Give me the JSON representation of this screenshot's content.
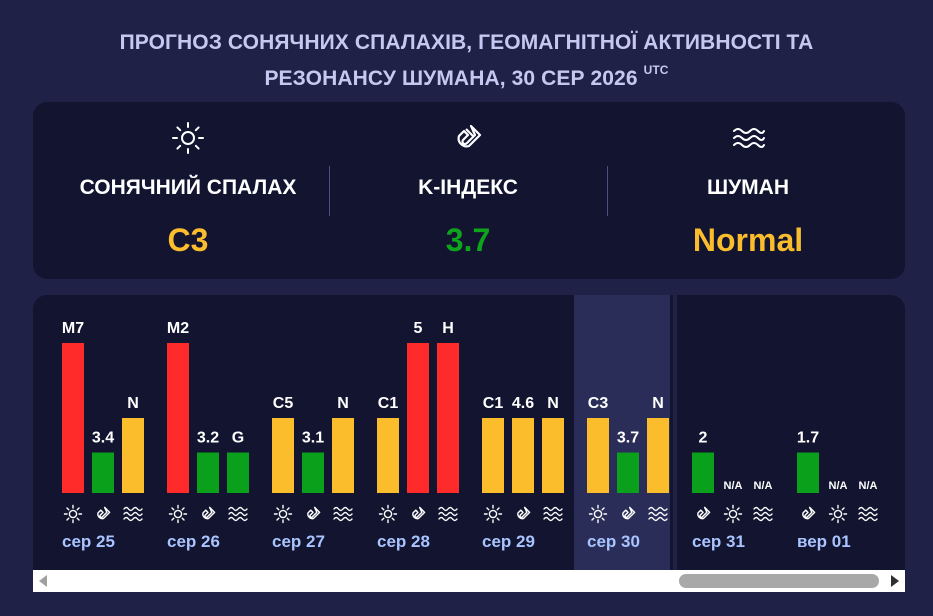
{
  "header": {
    "title_line1": "ПРОГНОЗ СОНЯЧНИХ СПАЛАХІВ, ГЕОМАГНІТНОЇ АКТИВНОСТІ ТА",
    "title_line2": "РЕЗОНАНСУ ШУМАНА, 30 СЕР 2026",
    "title_sup": "UTC"
  },
  "summary": {
    "solar": {
      "label": "СОНЯЧНИЙ СПАЛАХ",
      "value": "C3",
      "icon": "sun-icon",
      "color": "#fbbd2c"
    },
    "kindex": {
      "label": "K-ІНДЕКС",
      "value": "3.7",
      "icon": "magnet-icon",
      "color": "#0ea51d"
    },
    "schumann": {
      "label": "ШУМАН",
      "value": "Normal",
      "icon": "waves-icon",
      "color": "#fbbd2c"
    }
  },
  "colors": {
    "red": "#ff2b2b",
    "yellow": "#fbbd2c",
    "green": "#0aa01b",
    "highlight": "#2a2d58"
  },
  "chart_data": {
    "type": "bar",
    "series_kinds": [
      "solar-flare",
      "k-index",
      "schumann"
    ],
    "days": [
      {
        "date": "",
        "partial": true,
        "bars": [
          {
            "kind": "schumann",
            "label": "",
            "color": "yellow",
            "level": 0.55
          }
        ]
      },
      {
        "date": "сер 25",
        "bars": [
          {
            "kind": "flare",
            "label": "M7",
            "color": "red",
            "level": 1.0
          },
          {
            "kind": "kindex",
            "label": "3.4",
            "color": "green",
            "level": 0.27
          },
          {
            "kind": "schumann",
            "label": "N",
            "color": "yellow",
            "level": 0.5
          }
        ]
      },
      {
        "date": "сер 26",
        "bars": [
          {
            "kind": "flare",
            "label": "M2",
            "color": "red",
            "level": 1.0
          },
          {
            "kind": "kindex",
            "label": "3.2",
            "color": "green",
            "level": 0.27
          },
          {
            "kind": "schumann",
            "label": "G",
            "color": "green",
            "level": 0.27
          }
        ]
      },
      {
        "date": "сер 27",
        "bars": [
          {
            "kind": "flare",
            "label": "C5",
            "color": "yellow",
            "level": 0.5
          },
          {
            "kind": "kindex",
            "label": "3.1",
            "color": "green",
            "level": 0.27
          },
          {
            "kind": "schumann",
            "label": "N",
            "color": "yellow",
            "level": 0.5
          }
        ]
      },
      {
        "date": "сер 28",
        "bars": [
          {
            "kind": "flare",
            "label": "C1",
            "color": "yellow",
            "level": 0.5
          },
          {
            "kind": "kindex",
            "label": "5",
            "color": "red",
            "level": 1.0
          },
          {
            "kind": "schumann",
            "label": "H",
            "color": "red",
            "level": 1.0
          }
        ]
      },
      {
        "date": "сер 29",
        "bars": [
          {
            "kind": "flare",
            "label": "C1",
            "color": "yellow",
            "level": 0.5
          },
          {
            "kind": "kindex",
            "label": "4.6",
            "color": "yellow",
            "level": 0.5
          },
          {
            "kind": "schumann",
            "label": "N",
            "color": "yellow",
            "level": 0.5
          }
        ]
      },
      {
        "date": "сер 30",
        "highlight": true,
        "bars": [
          {
            "kind": "flare",
            "label": "C3",
            "color": "yellow",
            "level": 0.5
          },
          {
            "kind": "kindex",
            "label": "3.7",
            "color": "green",
            "level": 0.27
          },
          {
            "kind": "schumann",
            "label": "N",
            "color": "yellow",
            "level": 0.5
          }
        ]
      },
      {
        "date": "сер 31",
        "order": [
          "kindex",
          "flare",
          "schumann"
        ],
        "bars": [
          {
            "kind": "kindex",
            "label": "2",
            "color": "green",
            "level": 0.27
          },
          {
            "kind": "flare",
            "label": "N/A",
            "color": "none",
            "level": 0
          },
          {
            "kind": "schumann",
            "label": "N/A",
            "color": "none",
            "level": 0
          }
        ]
      },
      {
        "date": "вер 01",
        "order": [
          "kindex",
          "flare",
          "schumann"
        ],
        "bars": [
          {
            "kind": "kindex",
            "label": "1.7",
            "color": "green",
            "level": 0.27
          },
          {
            "kind": "flare",
            "label": "N/A",
            "color": "none",
            "level": 0
          },
          {
            "kind": "schumann",
            "label": "N/A",
            "color": "none",
            "level": 0
          }
        ]
      }
    ]
  }
}
